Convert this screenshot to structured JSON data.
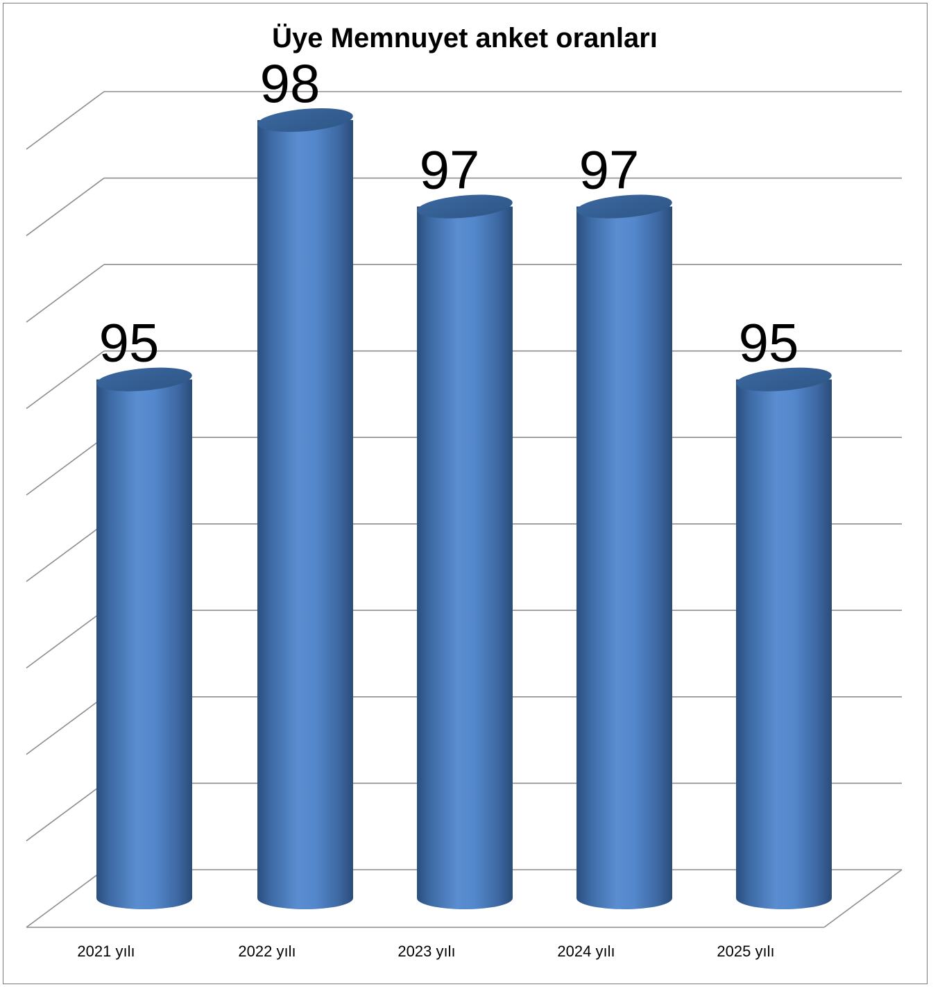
{
  "chart_data": {
    "type": "bar",
    "title": "Üye Memnuyet anket oranları",
    "categories": [
      "2021 yılı",
      "2022 yılı",
      "2023 yılı",
      "2024 yılı",
      "2025 yılı"
    ],
    "values": [
      95,
      98,
      97,
      97,
      95
    ],
    "value_labels": [
      "95",
      "98",
      "97",
      "97",
      "95"
    ],
    "ylim": [
      89,
      98.0
    ],
    "grid": true,
    "bar_color": "#4f81bd",
    "bar_style": "3d-cylinder",
    "legend": "none"
  }
}
